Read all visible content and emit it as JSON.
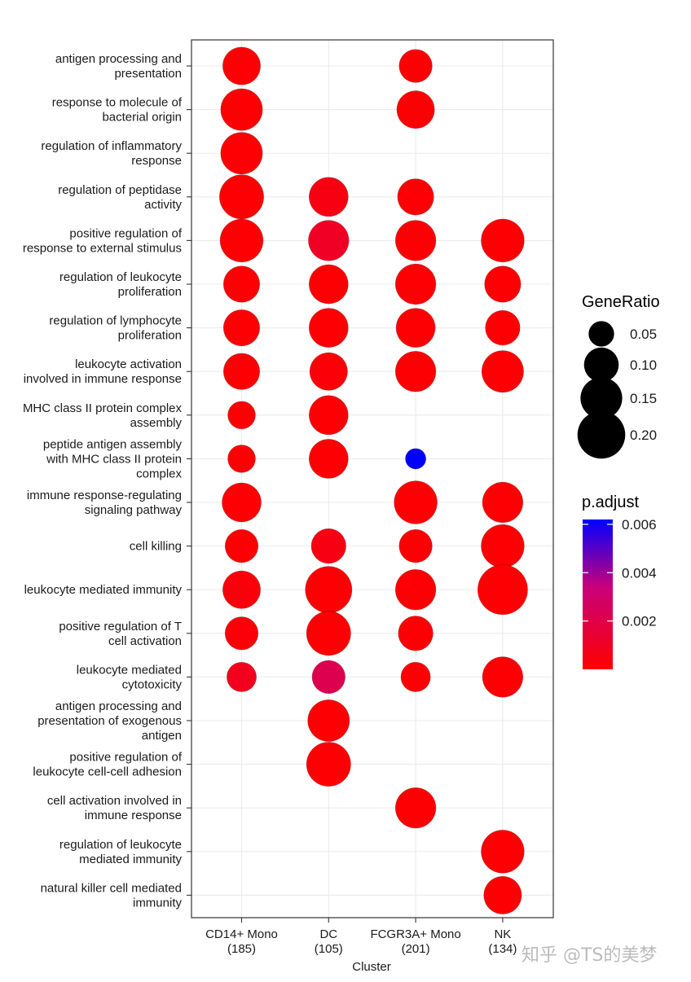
{
  "chart_data": {
    "type": "dotplot",
    "title": "",
    "xlabel": "Cluster",
    "ylabel": "",
    "grid": true,
    "legend_position": "right",
    "clusters": [
      {
        "name": "CD14+ Mono",
        "count": "(185)"
      },
      {
        "name": "DC",
        "count": "(105)"
      },
      {
        "name": "FCGR3A+ Mono",
        "count": "(201)"
      },
      {
        "name": "NK",
        "count": "(134)"
      }
    ],
    "terms": [
      [
        "antigen processing and",
        "presentation"
      ],
      [
        "response to molecule of",
        "bacterial origin"
      ],
      [
        "regulation of inflammatory",
        "response"
      ],
      [
        "regulation of peptidase",
        "activity"
      ],
      [
        "positive regulation of",
        "response to external stimulus"
      ],
      [
        "regulation of leukocyte",
        "proliferation"
      ],
      [
        "regulation of lymphocyte",
        "proliferation"
      ],
      [
        "leukocyte activation",
        "involved in immune response"
      ],
      [
        "MHC class II protein complex",
        "assembly"
      ],
      [
        "peptide antigen assembly",
        "with MHC class II protein",
        "complex"
      ],
      [
        "immune response-regulating",
        "signaling pathway"
      ],
      [
        "cell killing"
      ],
      [
        "leukocyte mediated immunity"
      ],
      [
        "positive regulation of T",
        "cell activation"
      ],
      [
        "leukocyte mediated",
        "cytotoxicity"
      ],
      [
        "antigen processing and",
        "presentation of exogenous",
        "antigen"
      ],
      [
        "positive regulation of",
        "leukocyte cell-cell adhesion"
      ],
      [
        "cell activation involved in",
        "immune response"
      ],
      [
        "regulation of leukocyte",
        "mediated immunity"
      ],
      [
        "natural killer cell mediated",
        "immunity"
      ]
    ],
    "points": [
      {
        "term": 0,
        "cluster": 0,
        "gene_ratio": 0.12,
        "p_adjust": 0.0001
      },
      {
        "term": 0,
        "cluster": 2,
        "gene_ratio": 0.09,
        "p_adjust": 0.0001
      },
      {
        "term": 1,
        "cluster": 0,
        "gene_ratio": 0.15,
        "p_adjust": 0.0001
      },
      {
        "term": 1,
        "cluster": 2,
        "gene_ratio": 0.12,
        "p_adjust": 0.0001
      },
      {
        "term": 2,
        "cluster": 0,
        "gene_ratio": 0.15,
        "p_adjust": 0.0001
      },
      {
        "term": 3,
        "cluster": 0,
        "gene_ratio": 0.17,
        "p_adjust": 0.0001
      },
      {
        "term": 3,
        "cluster": 1,
        "gene_ratio": 0.13,
        "p_adjust": 0.0005
      },
      {
        "term": 3,
        "cluster": 2,
        "gene_ratio": 0.11,
        "p_adjust": 0.0001
      },
      {
        "term": 4,
        "cluster": 0,
        "gene_ratio": 0.16,
        "p_adjust": 0.0001
      },
      {
        "term": 4,
        "cluster": 1,
        "gene_ratio": 0.14,
        "p_adjust": 0.001
      },
      {
        "term": 4,
        "cluster": 2,
        "gene_ratio": 0.14,
        "p_adjust": 0.0001
      },
      {
        "term": 4,
        "cluster": 3,
        "gene_ratio": 0.16,
        "p_adjust": 0.0001
      },
      {
        "term": 5,
        "cluster": 0,
        "gene_ratio": 0.11,
        "p_adjust": 0.0001
      },
      {
        "term": 5,
        "cluster": 1,
        "gene_ratio": 0.13,
        "p_adjust": 0.0001
      },
      {
        "term": 5,
        "cluster": 2,
        "gene_ratio": 0.14,
        "p_adjust": 0.0001
      },
      {
        "term": 5,
        "cluster": 3,
        "gene_ratio": 0.11,
        "p_adjust": 0.0001
      },
      {
        "term": 6,
        "cluster": 0,
        "gene_ratio": 0.11,
        "p_adjust": 0.0001
      },
      {
        "term": 6,
        "cluster": 1,
        "gene_ratio": 0.13,
        "p_adjust": 0.0001
      },
      {
        "term": 6,
        "cluster": 2,
        "gene_ratio": 0.13,
        "p_adjust": 0.0001
      },
      {
        "term": 6,
        "cluster": 3,
        "gene_ratio": 0.1,
        "p_adjust": 0.0001
      },
      {
        "term": 7,
        "cluster": 0,
        "gene_ratio": 0.11,
        "p_adjust": 0.0001
      },
      {
        "term": 7,
        "cluster": 1,
        "gene_ratio": 0.12,
        "p_adjust": 0.0002
      },
      {
        "term": 7,
        "cluster": 2,
        "gene_ratio": 0.14,
        "p_adjust": 0.0001
      },
      {
        "term": 7,
        "cluster": 3,
        "gene_ratio": 0.15,
        "p_adjust": 0.0001
      },
      {
        "term": 8,
        "cluster": 0,
        "gene_ratio": 0.06,
        "p_adjust": 0.0001
      },
      {
        "term": 8,
        "cluster": 1,
        "gene_ratio": 0.13,
        "p_adjust": 0.0001
      },
      {
        "term": 9,
        "cluster": 0,
        "gene_ratio": 0.06,
        "p_adjust": 0.0001
      },
      {
        "term": 9,
        "cluster": 1,
        "gene_ratio": 0.13,
        "p_adjust": 0.0001
      },
      {
        "term": 9,
        "cluster": 2,
        "gene_ratio": 0.03,
        "p_adjust": 0.0062
      },
      {
        "term": 10,
        "cluster": 0,
        "gene_ratio": 0.13,
        "p_adjust": 0.0001
      },
      {
        "term": 10,
        "cluster": 2,
        "gene_ratio": 0.16,
        "p_adjust": 0.0001
      },
      {
        "term": 10,
        "cluster": 3,
        "gene_ratio": 0.14,
        "p_adjust": 0.0001
      },
      {
        "term": 11,
        "cluster": 0,
        "gene_ratio": 0.09,
        "p_adjust": 0.0001
      },
      {
        "term": 11,
        "cluster": 1,
        "gene_ratio": 0.1,
        "p_adjust": 0.0005
      },
      {
        "term": 11,
        "cluster": 2,
        "gene_ratio": 0.09,
        "p_adjust": 0.0001
      },
      {
        "term": 11,
        "cluster": 3,
        "gene_ratio": 0.16,
        "p_adjust": 0.0001
      },
      {
        "term": 12,
        "cluster": 0,
        "gene_ratio": 0.12,
        "p_adjust": 0.0003
      },
      {
        "term": 12,
        "cluster": 1,
        "gene_ratio": 0.19,
        "p_adjust": 0.0001
      },
      {
        "term": 12,
        "cluster": 2,
        "gene_ratio": 0.14,
        "p_adjust": 0.0001
      },
      {
        "term": 12,
        "cluster": 3,
        "gene_ratio": 0.22,
        "p_adjust": 0.0001
      },
      {
        "term": 13,
        "cluster": 0,
        "gene_ratio": 0.09,
        "p_adjust": 0.0002
      },
      {
        "term": 13,
        "cluster": 1,
        "gene_ratio": 0.17,
        "p_adjust": 0.0001
      },
      {
        "term": 13,
        "cluster": 2,
        "gene_ratio": 0.1,
        "p_adjust": 0.0001
      },
      {
        "term": 14,
        "cluster": 0,
        "gene_ratio": 0.07,
        "p_adjust": 0.0008
      },
      {
        "term": 14,
        "cluster": 1,
        "gene_ratio": 0.09,
        "p_adjust": 0.0022
      },
      {
        "term": 14,
        "cluster": 2,
        "gene_ratio": 0.07,
        "p_adjust": 0.0001
      },
      {
        "term": 14,
        "cluster": 3,
        "gene_ratio": 0.14,
        "p_adjust": 0.0001
      },
      {
        "term": 15,
        "cluster": 1,
        "gene_ratio": 0.15,
        "p_adjust": 0.0001
      },
      {
        "term": 16,
        "cluster": 1,
        "gene_ratio": 0.17,
        "p_adjust": 0.0001
      },
      {
        "term": 17,
        "cluster": 2,
        "gene_ratio": 0.14,
        "p_adjust": 0.0001
      },
      {
        "term": 18,
        "cluster": 3,
        "gene_ratio": 0.16,
        "p_adjust": 0.0001
      },
      {
        "term": 19,
        "cluster": 3,
        "gene_ratio": 0.12,
        "p_adjust": 0.0001
      }
    ],
    "size_legend": {
      "title": "GeneRatio",
      "values": [
        0.05,
        0.1,
        0.15,
        0.2
      ],
      "labels": [
        "0.05",
        "0.10",
        "0.15",
        "0.20"
      ]
    },
    "color_legend": {
      "title": "p.adjust",
      "ticks": [
        0.006,
        0.004,
        0.002
      ],
      "labels": [
        "0.006",
        "0.004",
        "0.002"
      ],
      "range": [
        0.0,
        0.0062
      ],
      "low_color": "#ff0000",
      "high_color": "#0000ff"
    }
  },
  "watermark": "知乎 @TS的美梦"
}
